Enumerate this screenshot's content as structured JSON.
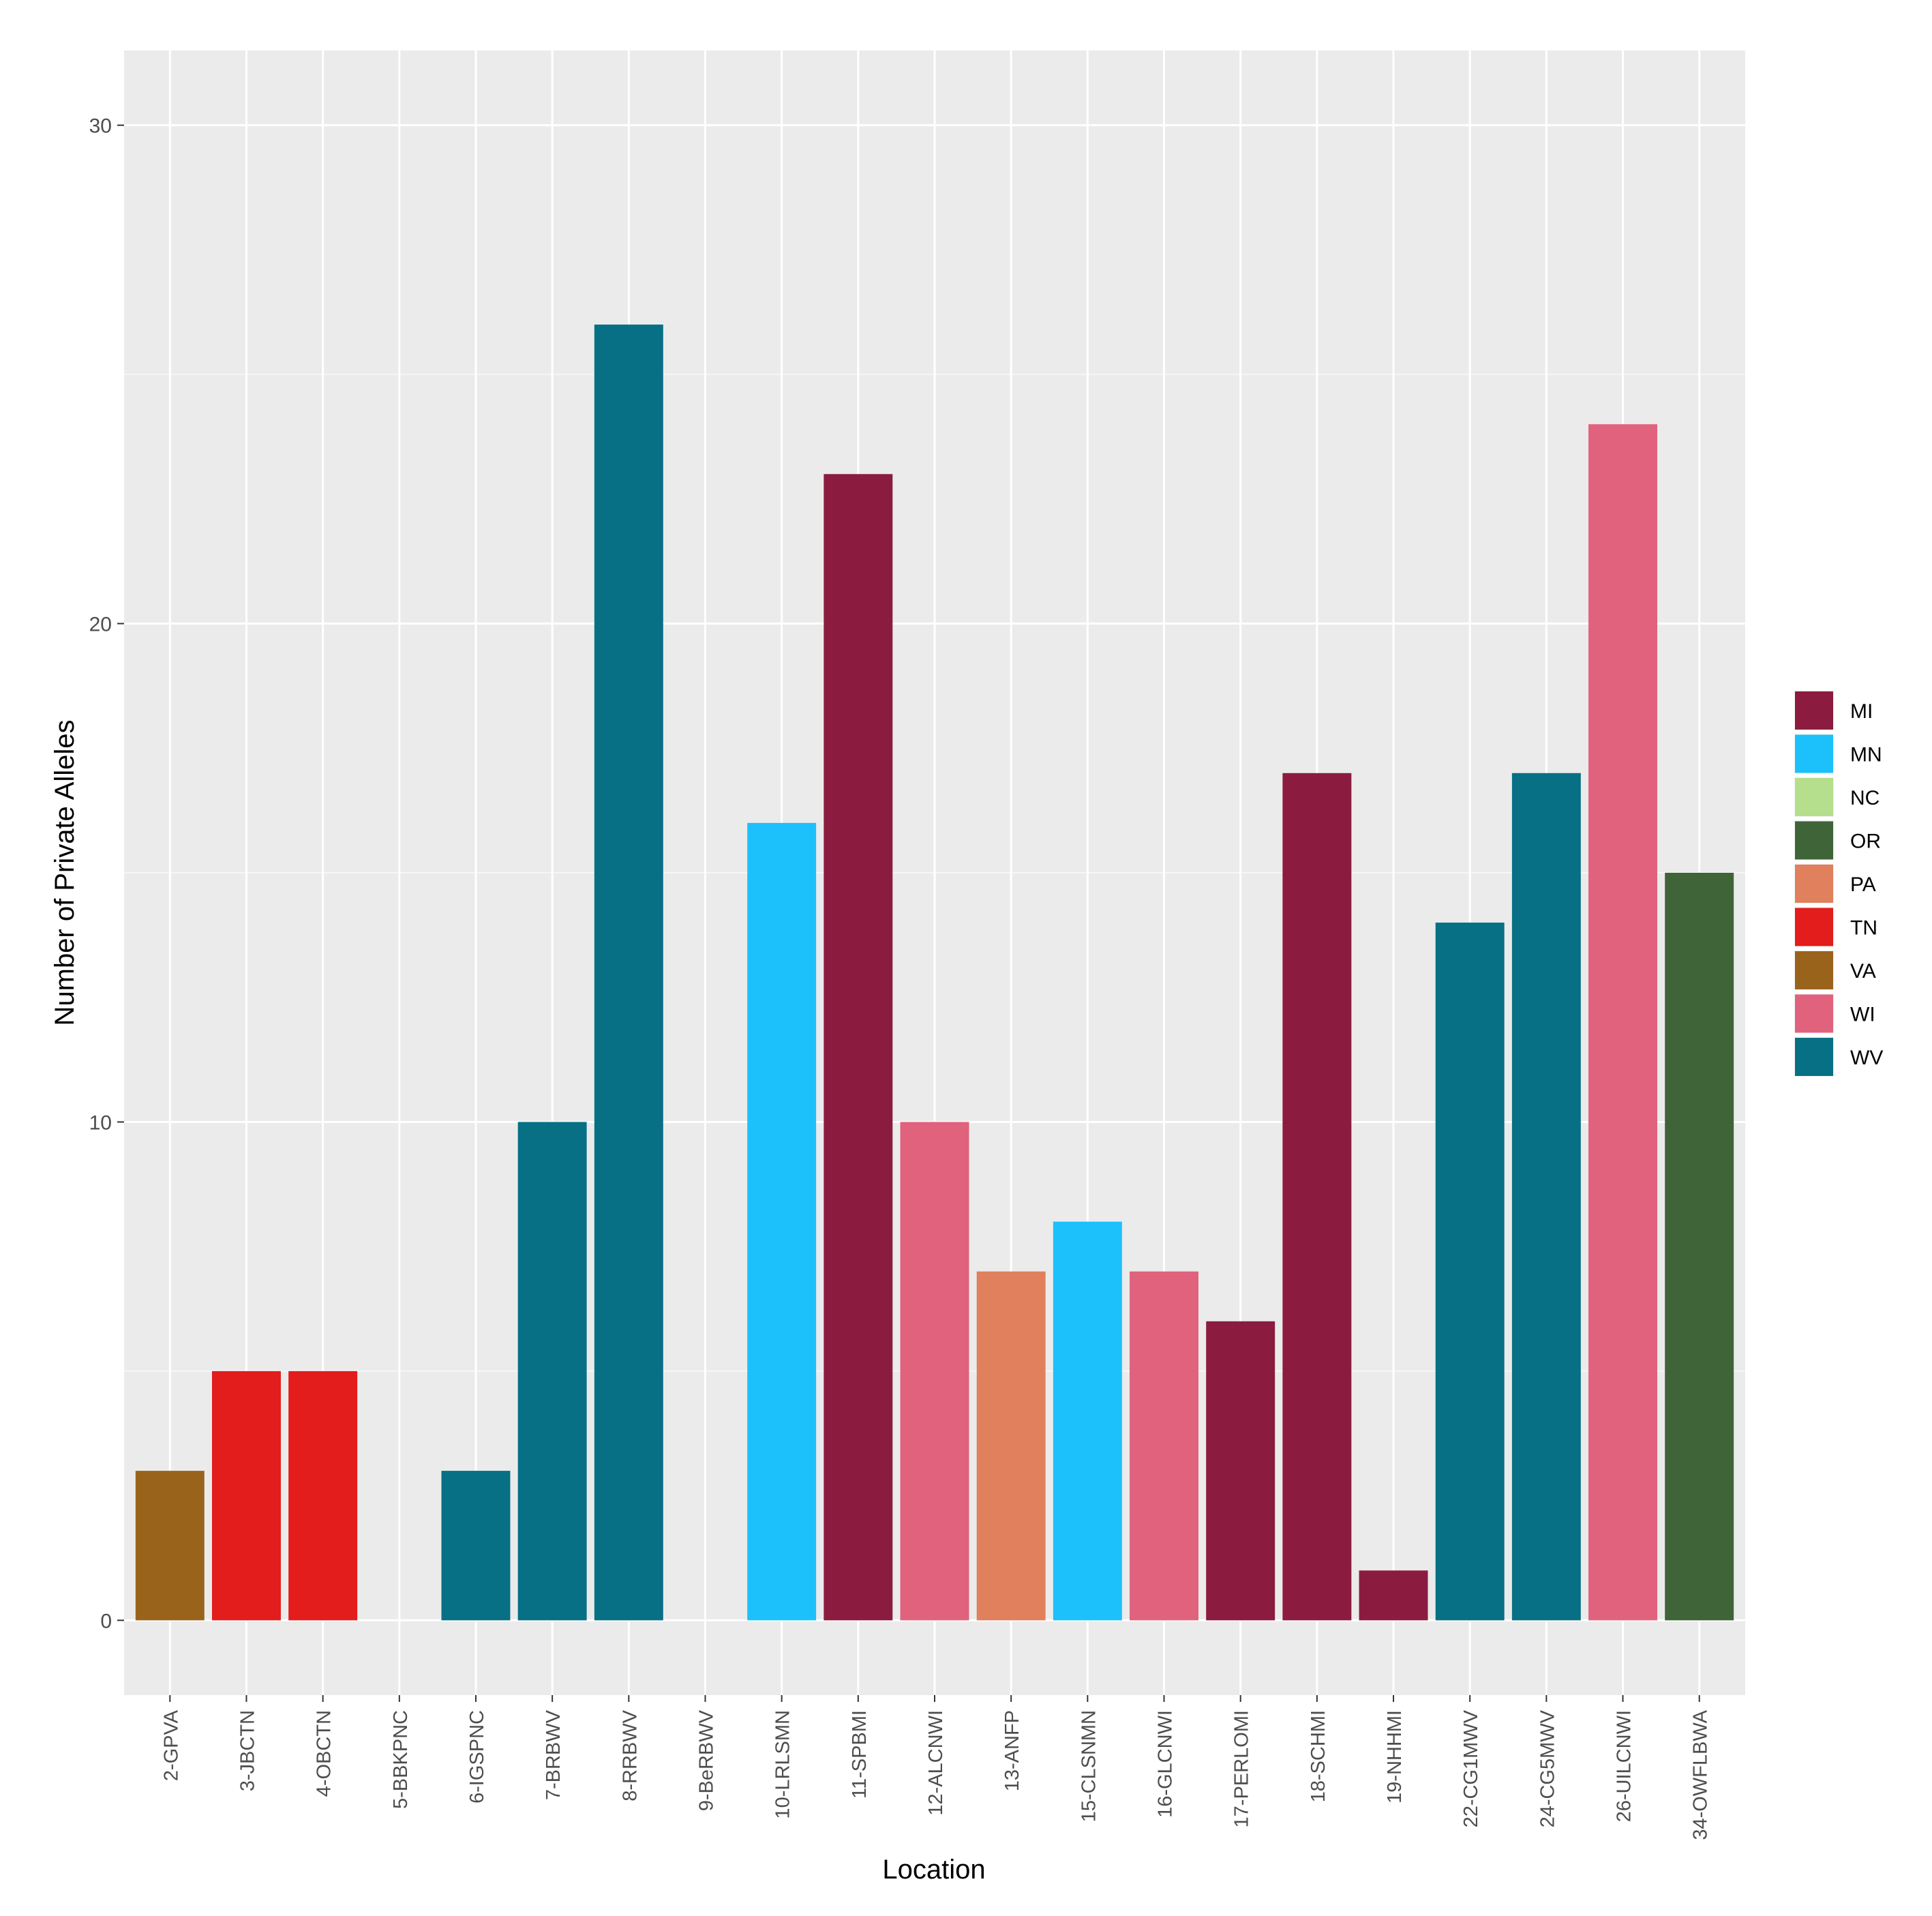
{
  "chart_data": {
    "type": "bar",
    "title": "",
    "xlabel": "Location",
    "ylabel": "Number of Private Alleles",
    "ylim": [
      -1.5,
      31.5
    ],
    "yticks": [
      0,
      10,
      20,
      30
    ],
    "grid": true,
    "legend_position": "right",
    "categories": [
      "2-GPVA",
      "3-JBCTN",
      "4-OBCTN",
      "5-BBKPNC",
      "6-IGSPNC",
      "7-BRBWV",
      "8-RRBWV",
      "9-BeRBWV",
      "10-LRLSMN",
      "11-SPBMI",
      "12-ALCNWI",
      "13-ANFP",
      "15-CLSNMN",
      "16-GLCNWI",
      "17-PERLOMI",
      "18-SCHMI",
      "19-NHHMI",
      "22-CG1MWV",
      "24-CG5MWV",
      "26-UILCNWI",
      "34-OWFLBWA"
    ],
    "values": [
      3,
      5,
      5,
      0,
      3,
      10,
      26,
      0,
      16,
      23,
      10,
      7,
      8,
      7,
      6,
      17,
      1,
      14,
      17,
      24,
      15
    ],
    "groups": [
      "VA",
      "TN",
      "TN",
      "NC",
      "WV",
      "WV",
      "WV",
      "WV",
      "MN",
      "MI",
      "WI",
      "PA",
      "MN",
      "WI",
      "MI",
      "MI",
      "MI",
      "WV",
      "WV",
      "WI",
      "OR"
    ],
    "legend": [
      {
        "label": "MI",
        "color": "#8B1C3F"
      },
      {
        "label": "MN",
        "color": "#1CC1FC"
      },
      {
        "label": "NC",
        "color": "#B5DF8C"
      },
      {
        "label": "OR",
        "color": "#3E6437"
      },
      {
        "label": "PA",
        "color": "#E0805C"
      },
      {
        "label": "TN",
        "color": "#E21D1B"
      },
      {
        "label": "VA",
        "color": "#9A631C"
      },
      {
        "label": "WI",
        "color": "#E0627D"
      },
      {
        "label": "WV",
        "color": "#077085"
      }
    ]
  }
}
